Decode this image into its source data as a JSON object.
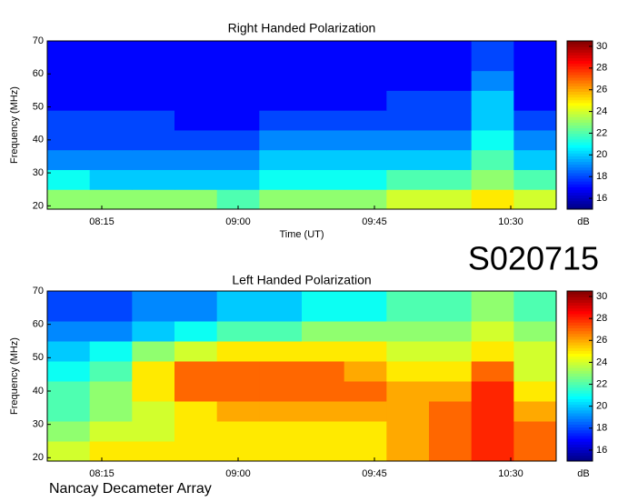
{
  "header": {
    "code": "S020715"
  },
  "footer": {
    "source": "Nancay Decameter Array"
  },
  "chart_data": [
    {
      "type": "heatmap",
      "title": "Right Handed Polarization",
      "xlabel": "Time (UT)",
      "ylabel": "Frequency (MHz)",
      "colorbar_label": "dB",
      "colormap": "jet",
      "xlim": [
        477,
        645
      ],
      "xticks": [
        {
          "value": 495,
          "label": "08:15"
        },
        {
          "value": 540,
          "label": "09:00"
        },
        {
          "value": 585,
          "label": "09:45"
        },
        {
          "value": 630,
          "label": "10:30"
        }
      ],
      "ylim": [
        19,
        70
      ],
      "yticks": [
        20,
        30,
        40,
        50,
        60,
        70
      ],
      "zlim": [
        15,
        30.5
      ],
      "zticks": [
        16,
        18,
        20,
        22,
        24,
        26,
        28,
        30
      ],
      "x_bins": [
        477,
        491,
        505,
        519,
        533,
        547,
        561,
        575,
        589,
        603,
        617,
        631,
        645
      ],
      "y_bins": [
        19,
        25,
        31,
        37,
        43,
        49,
        55,
        61,
        70
      ],
      "z": [
        [
          23,
          23,
          23,
          23,
          22,
          23,
          23,
          23,
          24,
          24,
          25,
          24
        ],
        [
          21,
          20,
          20,
          20,
          20,
          21,
          21,
          21,
          22,
          22,
          23,
          22
        ],
        [
          19,
          19,
          19,
          19,
          19,
          20,
          20,
          20,
          20,
          20,
          22,
          20
        ],
        [
          18,
          18,
          18,
          18,
          18,
          19,
          19,
          19,
          19,
          19,
          21,
          19
        ],
        [
          18,
          18,
          18,
          17,
          17,
          18,
          18,
          18,
          18,
          18,
          20,
          18
        ],
        [
          17,
          17,
          17,
          17,
          17,
          17,
          17,
          17,
          18,
          18,
          20,
          17
        ],
        [
          17,
          17,
          17,
          17,
          17,
          17,
          17,
          17,
          17,
          17,
          19,
          17
        ],
        [
          17,
          17,
          17,
          17,
          17,
          17,
          17,
          17,
          17,
          17,
          18,
          17
        ]
      ]
    },
    {
      "type": "heatmap",
      "title": "Left Handed Polarization",
      "ylabel": "Frequency (MHz)",
      "colorbar_label": "dB",
      "colormap": "jet",
      "xlim": [
        477,
        645
      ],
      "xticks": [
        {
          "value": 495,
          "label": "08:15"
        },
        {
          "value": 540,
          "label": "09:00"
        },
        {
          "value": 585,
          "label": "09:45"
        },
        {
          "value": 630,
          "label": "10:30"
        }
      ],
      "ylim": [
        19,
        70
      ],
      "yticks": [
        20,
        30,
        40,
        50,
        60,
        70
      ],
      "zlim": [
        15,
        30.5
      ],
      "zticks": [
        16,
        18,
        20,
        22,
        24,
        26,
        28,
        30
      ],
      "x_bins": [
        477,
        491,
        505,
        519,
        533,
        547,
        561,
        575,
        589,
        603,
        617,
        631,
        645
      ],
      "y_bins": [
        19,
        25,
        31,
        37,
        43,
        49,
        55,
        61,
        70
      ],
      "z": [
        [
          24,
          25,
          25,
          25,
          25,
          25,
          25,
          25,
          26,
          27,
          28,
          27
        ],
        [
          23,
          24,
          24,
          25,
          25,
          25,
          25,
          25,
          26,
          27,
          28,
          27
        ],
        [
          22,
          23,
          24,
          25,
          26,
          26,
          26,
          26,
          26,
          27,
          28,
          26
        ],
        [
          22,
          23,
          25,
          27,
          27,
          27,
          27,
          27,
          26,
          26,
          28,
          25
        ],
        [
          21,
          22,
          25,
          27,
          27,
          27,
          27,
          26,
          25,
          25,
          27,
          24
        ],
        [
          20,
          21,
          23,
          24,
          25,
          25,
          25,
          25,
          24,
          24,
          25,
          24
        ],
        [
          19,
          19,
          20,
          21,
          22,
          22,
          23,
          23,
          23,
          23,
          24,
          23
        ],
        [
          18,
          18,
          19,
          19,
          20,
          20,
          21,
          21,
          22,
          22,
          23,
          22
        ]
      ]
    }
  ]
}
